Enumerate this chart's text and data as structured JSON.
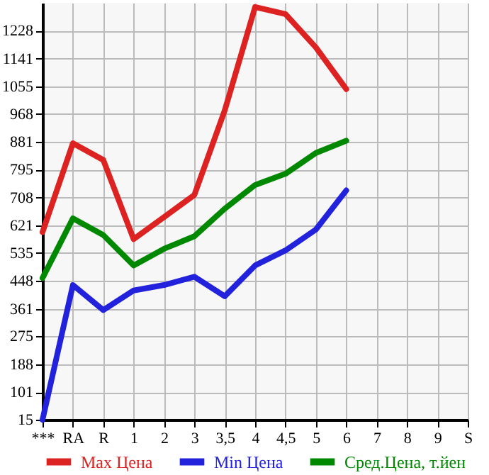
{
  "chart_data": {
    "type": "line",
    "categories": [
      "***",
      "RA",
      "R",
      "1",
      "2",
      "3",
      "3,5",
      "4",
      "4,5",
      "5",
      "6",
      "7",
      "8",
      "9",
      "S"
    ],
    "series": [
      {
        "name": "Max Цена",
        "color": "#dd2222",
        "values": [
          600,
          877,
          825,
          578,
          647,
          716,
          980,
          1302,
          1280,
          1176,
          1046,
          null,
          null,
          null,
          null
        ]
      },
      {
        "name": "Min Цена",
        "color": "#2222dd",
        "values": [
          15,
          435,
          357,
          418,
          435,
          461,
          400,
          496,
          543,
          608,
          730,
          null,
          null,
          null,
          null
        ]
      },
      {
        "name": "Сред.Цена, т.йен",
        "color": "#008800",
        "values": [
          457,
          643,
          591,
          496,
          548,
          587,
          673,
          747,
          782,
          847,
          885,
          null,
          null,
          null,
          null
        ]
      }
    ],
    "ylim": [
      15,
      1315
    ],
    "yticks": [
      15,
      101,
      188,
      275,
      361,
      448,
      535,
      621,
      708,
      795,
      881,
      968,
      1055,
      1141,
      1228
    ],
    "grid": true,
    "legend": "bottom",
    "marker": "none",
    "line_style": "solid"
  }
}
